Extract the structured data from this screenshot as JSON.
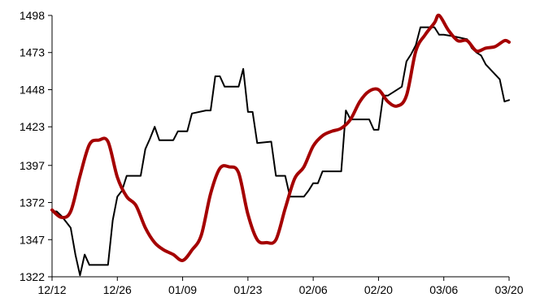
{
  "chart_data": {
    "type": "line",
    "title": "",
    "xlabel": "",
    "ylabel": "",
    "ylim": [
      1322,
      1498
    ],
    "y_ticks": [
      1322,
      1347,
      1372,
      1397,
      1423,
      1448,
      1473,
      1498
    ],
    "x_range": [
      "2012-12-12",
      "2013-03-20"
    ],
    "x_ticks": [
      {
        "date": "2012-12-12",
        "label": "12/12"
      },
      {
        "date": "2012-12-26",
        "label": "12/26"
      },
      {
        "date": "2013-01-09",
        "label": "01/09"
      },
      {
        "date": "2013-01-23",
        "label": "01/23"
      },
      {
        "date": "2013-02-06",
        "label": "02/06"
      },
      {
        "date": "2013-02-20",
        "label": "02/20"
      },
      {
        "date": "2013-03-06",
        "label": "03/06"
      },
      {
        "date": "2013-03-20",
        "label": "03/20"
      }
    ],
    "grid": false,
    "legend": "none",
    "series": [
      {
        "color": "#000000",
        "line_width": 2,
        "interpolation": "linear",
        "points": [
          [
            "2012-12-12",
            1366
          ],
          [
            "2012-12-13",
            1366
          ],
          [
            "2012-12-14",
            1363
          ],
          [
            "2012-12-15",
            1359
          ],
          [
            "2012-12-16",
            1355
          ],
          [
            "2012-12-17",
            1337
          ],
          [
            "2012-12-18",
            1323
          ],
          [
            "2012-12-19",
            1337
          ],
          [
            "2012-12-20",
            1330
          ],
          [
            "2012-12-21",
            1330
          ],
          [
            "2012-12-24",
            1330
          ],
          [
            "2012-12-25",
            1360
          ],
          [
            "2012-12-26",
            1376
          ],
          [
            "2012-12-27",
            1380
          ],
          [
            "2012-12-28",
            1390
          ],
          [
            "2012-12-31",
            1390
          ],
          [
            "2013-01-01",
            1408
          ],
          [
            "2013-01-02",
            1415
          ],
          [
            "2013-01-03",
            1423
          ],
          [
            "2013-01-04",
            1414
          ],
          [
            "2013-01-07",
            1414
          ],
          [
            "2013-01-08",
            1420
          ],
          [
            "2013-01-10",
            1420
          ],
          [
            "2013-01-11",
            1432
          ],
          [
            "2013-01-14",
            1434
          ],
          [
            "2013-01-15",
            1434
          ],
          [
            "2013-01-16",
            1457
          ],
          [
            "2013-01-17",
            1457
          ],
          [
            "2013-01-18",
            1450
          ],
          [
            "2013-01-21",
            1450
          ],
          [
            "2013-01-22",
            1462
          ],
          [
            "2013-01-23",
            1433
          ],
          [
            "2013-01-24",
            1433
          ],
          [
            "2013-01-25",
            1412
          ],
          [
            "2013-01-28",
            1413
          ],
          [
            "2013-01-29",
            1390
          ],
          [
            "2013-01-31",
            1390
          ],
          [
            "2013-02-01",
            1376
          ],
          [
            "2013-02-04",
            1376
          ],
          [
            "2013-02-05",
            1380
          ],
          [
            "2013-02-06",
            1385
          ],
          [
            "2013-02-07",
            1385
          ],
          [
            "2013-02-08",
            1393
          ],
          [
            "2013-02-11",
            1393
          ],
          [
            "2013-02-12",
            1393
          ],
          [
            "2013-02-13",
            1434
          ],
          [
            "2013-02-14",
            1428
          ],
          [
            "2013-02-15",
            1428
          ],
          [
            "2013-02-18",
            1428
          ],
          [
            "2013-02-19",
            1421
          ],
          [
            "2013-02-20",
            1421
          ],
          [
            "2013-02-21",
            1444
          ],
          [
            "2013-02-22",
            1444
          ],
          [
            "2013-02-25",
            1450
          ],
          [
            "2013-02-26",
            1467
          ],
          [
            "2013-02-27",
            1472
          ],
          [
            "2013-02-28",
            1478
          ],
          [
            "2013-03-01",
            1490
          ],
          [
            "2013-03-04",
            1490
          ],
          [
            "2013-03-05",
            1485
          ],
          [
            "2013-03-06",
            1485
          ],
          [
            "2013-03-08",
            1484
          ],
          [
            "2013-03-11",
            1482
          ],
          [
            "2013-03-12",
            1476
          ],
          [
            "2013-03-13",
            1473
          ],
          [
            "2013-03-14",
            1471
          ],
          [
            "2013-03-15",
            1465
          ],
          [
            "2013-03-18",
            1455
          ],
          [
            "2013-03-19",
            1440
          ],
          [
            "2013-03-20",
            1441
          ]
        ]
      },
      {
        "color": "#a50000",
        "line_width": 4,
        "interpolation": "smooth",
        "points": [
          [
            "2012-12-12",
            1367
          ],
          [
            "2012-12-14",
            1362
          ],
          [
            "2012-12-16",
            1366
          ],
          [
            "2012-12-18",
            1390
          ],
          [
            "2012-12-20",
            1411
          ],
          [
            "2012-12-22",
            1414
          ],
          [
            "2012-12-24",
            1413
          ],
          [
            "2012-12-26",
            1389
          ],
          [
            "2012-12-28",
            1376
          ],
          [
            "2012-12-30",
            1370
          ],
          [
            "2013-01-01",
            1355
          ],
          [
            "2013-01-03",
            1345
          ],
          [
            "2013-01-05",
            1340
          ],
          [
            "2013-01-07",
            1337
          ],
          [
            "2013-01-09",
            1333
          ],
          [
            "2013-01-11",
            1340
          ],
          [
            "2013-01-13",
            1350
          ],
          [
            "2013-01-15",
            1378
          ],
          [
            "2013-01-17",
            1395
          ],
          [
            "2013-01-19",
            1396
          ],
          [
            "2013-01-21",
            1392
          ],
          [
            "2013-01-23",
            1364
          ],
          [
            "2013-01-25",
            1347
          ],
          [
            "2013-01-27",
            1345
          ],
          [
            "2013-01-29",
            1347
          ],
          [
            "2013-01-31",
            1368
          ],
          [
            "2013-02-02",
            1388
          ],
          [
            "2013-02-04",
            1396
          ],
          [
            "2013-02-06",
            1410
          ],
          [
            "2013-02-08",
            1417
          ],
          [
            "2013-02-10",
            1420
          ],
          [
            "2013-02-12",
            1422
          ],
          [
            "2013-02-14",
            1428
          ],
          [
            "2013-02-16",
            1440
          ],
          [
            "2013-02-18",
            1447
          ],
          [
            "2013-02-20",
            1448
          ],
          [
            "2013-02-22",
            1440
          ],
          [
            "2013-02-24",
            1437
          ],
          [
            "2013-02-26",
            1444
          ],
          [
            "2013-02-28",
            1474
          ],
          [
            "2013-03-02",
            1485
          ],
          [
            "2013-03-04",
            1493
          ],
          [
            "2013-03-05",
            1498
          ],
          [
            "2013-03-07",
            1488
          ],
          [
            "2013-03-09",
            1481
          ],
          [
            "2013-03-11",
            1481
          ],
          [
            "2013-03-13",
            1474
          ],
          [
            "2013-03-15",
            1476
          ],
          [
            "2013-03-17",
            1477
          ],
          [
            "2013-03-19",
            1481
          ],
          [
            "2013-03-20",
            1480
          ]
        ]
      }
    ]
  }
}
